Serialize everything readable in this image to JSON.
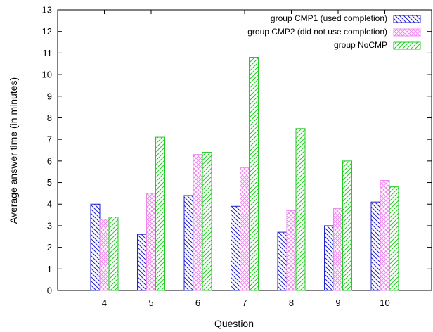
{
  "chart_data": {
    "type": "bar",
    "xlabel": "Question",
    "ylabel": "Average answer time (in minutes)",
    "ylim": [
      0,
      13
    ],
    "yticks": [
      0,
      1,
      2,
      3,
      4,
      5,
      6,
      7,
      8,
      9,
      10,
      11,
      12,
      13
    ],
    "categories": [
      "4",
      "5",
      "6",
      "7",
      "8",
      "9",
      "10"
    ],
    "legend_position": "top-right",
    "grid": false,
    "series": [
      {
        "name": "group CMP1 (used completion)",
        "color": "#2222cc",
        "pattern": "diagonal-hatch",
        "values": [
          4.0,
          2.6,
          4.4,
          3.9,
          2.7,
          3.0,
          4.1
        ]
      },
      {
        "name": "group CMP2 (did not use completion)",
        "color": "#ee88ee",
        "pattern": "cross-hatch",
        "values": [
          3.3,
          4.5,
          6.3,
          5.7,
          3.7,
          3.8,
          5.1
        ]
      },
      {
        "name": "group NoCMP",
        "color": "#22cc22",
        "pattern": "diagonal-hatch-reverse",
        "values": [
          3.4,
          7.1,
          6.4,
          10.8,
          7.5,
          6.0,
          4.8
        ]
      }
    ]
  }
}
